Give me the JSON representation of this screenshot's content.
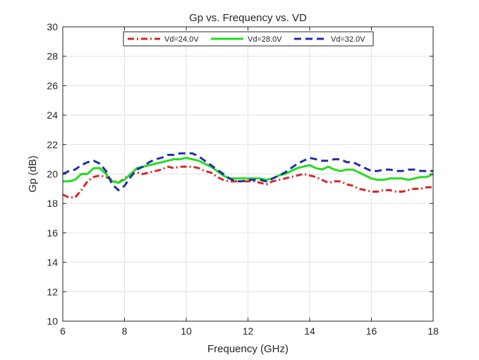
{
  "chart_data": {
    "type": "line",
    "title": "Gp vs. Frequency vs. VD",
    "xlabel": "Frequency (GHz)",
    "ylabel": "Gp (dB)",
    "xlim": [
      6,
      18
    ],
    "ylim": [
      10,
      30
    ],
    "xticks": [
      6,
      8,
      10,
      12,
      14,
      16,
      18
    ],
    "yticks": [
      10,
      12,
      14,
      16,
      18,
      20,
      22,
      24,
      26,
      28,
      30
    ],
    "grid": true,
    "legend_position": "top",
    "series": [
      {
        "name": "Vd=24.0V",
        "color": "#d62728",
        "dash": "dash-dot",
        "x": [
          6.0,
          6.2,
          6.4,
          6.6,
          6.8,
          7.0,
          7.2,
          7.4,
          7.6,
          7.8,
          8.0,
          8.2,
          8.4,
          8.6,
          8.8,
          9.0,
          9.2,
          9.4,
          9.6,
          9.8,
          10.0,
          10.2,
          10.4,
          10.6,
          10.8,
          11.0,
          11.2,
          11.4,
          11.6,
          11.8,
          12.0,
          12.2,
          12.4,
          12.6,
          12.8,
          13.0,
          13.2,
          13.4,
          13.6,
          13.8,
          14.0,
          14.2,
          14.4,
          14.6,
          14.8,
          15.0,
          15.2,
          15.4,
          15.6,
          15.8,
          16.0,
          16.2,
          16.4,
          16.6,
          16.8,
          17.0,
          17.2,
          17.4,
          17.6,
          17.8,
          18.0
        ],
        "values": [
          18.6,
          18.4,
          18.4,
          18.9,
          19.5,
          19.8,
          19.9,
          19.8,
          19.6,
          19.4,
          19.7,
          20.0,
          20.1,
          20.0,
          20.1,
          20.2,
          20.3,
          20.5,
          20.4,
          20.5,
          20.5,
          20.5,
          20.4,
          20.2,
          20.1,
          19.8,
          19.6,
          19.5,
          19.5,
          19.5,
          19.5,
          19.5,
          19.4,
          19.3,
          19.5,
          19.6,
          19.7,
          19.8,
          19.9,
          20.0,
          19.9,
          19.8,
          19.6,
          19.4,
          19.5,
          19.5,
          19.3,
          19.2,
          19.0,
          18.9,
          18.8,
          18.8,
          18.9,
          18.9,
          18.8,
          18.8,
          18.9,
          19.0,
          19.0,
          19.1,
          19.1
        ]
      },
      {
        "name": "Vd=28.0V",
        "color": "#22dd22",
        "dash": "solid",
        "x": [
          6.0,
          6.2,
          6.4,
          6.6,
          6.8,
          7.0,
          7.2,
          7.4,
          7.6,
          7.8,
          8.0,
          8.2,
          8.4,
          8.6,
          8.8,
          9.0,
          9.2,
          9.4,
          9.6,
          9.8,
          10.0,
          10.2,
          10.4,
          10.6,
          10.8,
          11.0,
          11.2,
          11.4,
          11.6,
          11.8,
          12.0,
          12.2,
          12.4,
          12.6,
          12.8,
          13.0,
          13.2,
          13.4,
          13.6,
          13.8,
          14.0,
          14.2,
          14.4,
          14.6,
          14.8,
          15.0,
          15.2,
          15.4,
          15.6,
          15.8,
          16.0,
          16.2,
          16.4,
          16.6,
          16.8,
          17.0,
          17.2,
          17.4,
          17.6,
          17.8,
          18.0
        ],
        "values": [
          19.5,
          19.5,
          19.6,
          20.0,
          20.0,
          20.4,
          20.4,
          20.0,
          19.5,
          19.4,
          19.6,
          20.0,
          20.4,
          20.5,
          20.6,
          20.7,
          20.8,
          20.9,
          21.0,
          21.0,
          21.1,
          21.0,
          20.9,
          20.7,
          20.5,
          20.2,
          19.9,
          19.7,
          19.7,
          19.7,
          19.7,
          19.7,
          19.7,
          19.6,
          19.7,
          19.9,
          20.0,
          20.2,
          20.4,
          20.5,
          20.6,
          20.4,
          20.3,
          20.5,
          20.3,
          20.2,
          20.3,
          20.3,
          20.1,
          19.9,
          19.7,
          19.6,
          19.6,
          19.7,
          19.7,
          19.7,
          19.6,
          19.7,
          19.8,
          19.8,
          20.0
        ]
      },
      {
        "name": "Vd=32.0V",
        "color": "#1f2fa8",
        "dash": "dashed",
        "x": [
          6.0,
          6.2,
          6.4,
          6.6,
          6.8,
          7.0,
          7.2,
          7.4,
          7.6,
          7.8,
          8.0,
          8.2,
          8.4,
          8.6,
          8.8,
          9.0,
          9.2,
          9.4,
          9.6,
          9.8,
          10.0,
          10.2,
          10.4,
          10.6,
          10.8,
          11.0,
          11.2,
          11.4,
          11.6,
          11.8,
          12.0,
          12.2,
          12.4,
          12.6,
          12.8,
          13.0,
          13.2,
          13.4,
          13.6,
          13.8,
          14.0,
          14.2,
          14.4,
          14.6,
          14.8,
          15.0,
          15.2,
          15.4,
          15.6,
          15.8,
          16.0,
          16.2,
          16.4,
          16.6,
          16.8,
          17.0,
          17.2,
          17.4,
          17.6,
          17.8,
          18.0
        ],
        "values": [
          20.0,
          20.2,
          20.3,
          20.6,
          20.8,
          20.9,
          20.7,
          20.2,
          19.3,
          18.9,
          19.2,
          19.8,
          20.3,
          20.5,
          20.8,
          21.0,
          21.1,
          21.3,
          21.3,
          21.4,
          21.4,
          21.4,
          21.2,
          20.9,
          20.6,
          20.3,
          20.0,
          19.7,
          19.5,
          19.5,
          19.6,
          19.6,
          19.6,
          19.5,
          19.7,
          19.9,
          20.1,
          20.4,
          20.7,
          20.9,
          21.1,
          21.0,
          20.9,
          20.9,
          21.0,
          21.0,
          20.8,
          20.8,
          20.6,
          20.4,
          20.2,
          20.2,
          20.3,
          20.3,
          20.2,
          20.2,
          20.3,
          20.3,
          20.2,
          20.2,
          20.2
        ]
      }
    ]
  }
}
